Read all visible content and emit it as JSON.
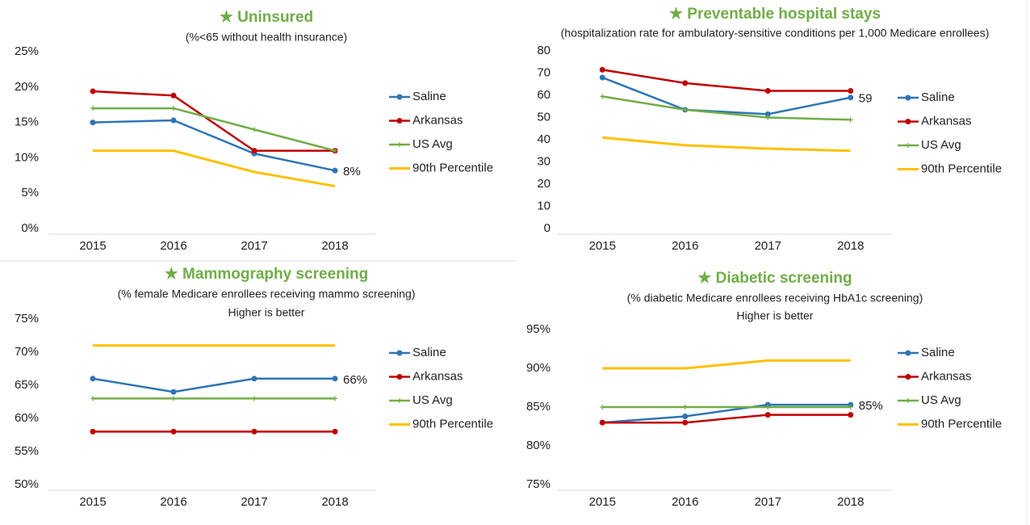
{
  "chart_data": [
    {
      "type": "line",
      "title": "★ Uninsured",
      "subtitle": "(%<65 without health insurance)",
      "categories": [
        "2015",
        "2016",
        "2017",
        "2018"
      ],
      "ylim": [
        0,
        25
      ],
      "yticks": [
        {
          "value": 0,
          "label": "0%"
        },
        {
          "value": 5,
          "label": "5%"
        },
        {
          "value": 10,
          "label": "10%"
        },
        {
          "value": 15,
          "label": "15%"
        },
        {
          "value": 20,
          "label": "20%"
        },
        {
          "value": 25,
          "label": "25%"
        }
      ],
      "series": [
        {
          "name": "Saline",
          "color": "#2e75b6",
          "marker": "circle",
          "values": [
            15,
            15.3,
            10.6,
            8.2
          ],
          "value_labels": [
            null,
            null,
            null,
            "8%"
          ]
        },
        {
          "name": "Arkansas",
          "color": "#c00000",
          "marker": "circle",
          "values": [
            19.4,
            18.8,
            11,
            11
          ]
        },
        {
          "name": "US Avg",
          "color": "#70ad47",
          "marker": "plus",
          "values": [
            17,
            17,
            14,
            11
          ]
        },
        {
          "name": "90th Percentile",
          "color": "#ffc000",
          "marker": "none",
          "values": [
            11,
            11,
            8,
            6
          ]
        }
      ]
    },
    {
      "type": "line",
      "title": "★ Preventable hospital stays",
      "subtitle": "(hospitalization rate for ambulatory-sensitive conditions per 1,000 Medicare enrollees)",
      "categories": [
        "2015",
        "2016",
        "2017",
        "2018"
      ],
      "ylim": [
        0,
        80
      ],
      "yticks": [
        0,
        10,
        20,
        30,
        40,
        50,
        60,
        70,
        80
      ],
      "series": [
        {
          "name": "Saline",
          "color": "#2e75b6",
          "marker": "circle",
          "values": [
            68,
            53.5,
            51.5,
            59
          ],
          "value_labels": [
            null,
            null,
            null,
            "59"
          ]
        },
        {
          "name": "Arkansas",
          "color": "#c00000",
          "marker": "circle",
          "values": [
            71.5,
            65.5,
            62,
            62
          ]
        },
        {
          "name": "US Avg",
          "color": "#70ad47",
          "marker": "plus",
          "values": [
            59.5,
            53.5,
            50,
            49
          ]
        },
        {
          "name": "90th Percentile",
          "color": "#ffc000",
          "marker": "none",
          "values": [
            41,
            37.5,
            36,
            35
          ]
        }
      ]
    },
    {
      "type": "line",
      "title": "★ Mammography screening",
      "subtitle": "(% female Medicare enrollees receiving mammo screening)",
      "note": "Higher is better",
      "categories": [
        "2015",
        "2016",
        "2017",
        "2018"
      ],
      "ylim": [
        50,
        75
      ],
      "yticks": [
        {
          "value": 50,
          "label": "50%"
        },
        {
          "value": 55,
          "label": "55%"
        },
        {
          "value": 60,
          "label": "60%"
        },
        {
          "value": 65,
          "label": "65%"
        },
        {
          "value": 70,
          "label": "70%"
        },
        {
          "value": 75,
          "label": "75%"
        }
      ],
      "series": [
        {
          "name": "Saline",
          "color": "#2e75b6",
          "marker": "circle",
          "values": [
            66,
            64,
            66,
            66
          ],
          "value_labels": [
            null,
            null,
            null,
            "66%"
          ]
        },
        {
          "name": "Arkansas",
          "color": "#c00000",
          "marker": "circle",
          "values": [
            58,
            58,
            58,
            58
          ]
        },
        {
          "name": "US Avg",
          "color": "#70ad47",
          "marker": "plus",
          "values": [
            63,
            63,
            63,
            63
          ]
        },
        {
          "name": "90th Percentile",
          "color": "#ffc000",
          "marker": "none",
          "values": [
            71,
            71,
            71,
            71
          ]
        }
      ]
    },
    {
      "type": "line",
      "title": "★ Diabetic screening",
      "subtitle": "(% diabetic Medicare enrollees receiving HbA1c screening)",
      "note": "Higher is better",
      "categories": [
        "2015",
        "2016",
        "2017",
        "2018"
      ],
      "ylim": [
        75,
        95
      ],
      "yticks": [
        {
          "value": 75,
          "label": "75%"
        },
        {
          "value": 80,
          "label": "80%"
        },
        {
          "value": 85,
          "label": "85%"
        },
        {
          "value": 90,
          "label": "90%"
        },
        {
          "value": 95,
          "label": "95%"
        }
      ],
      "series": [
        {
          "name": "Saline",
          "color": "#2e75b6",
          "marker": "circle",
          "values": [
            83,
            83.8,
            85.3,
            85.3
          ],
          "value_labels": [
            null,
            null,
            null,
            "85%"
          ]
        },
        {
          "name": "Arkansas",
          "color": "#c00000",
          "marker": "circle",
          "values": [
            83,
            83,
            84,
            84
          ]
        },
        {
          "name": "US Avg",
          "color": "#70ad47",
          "marker": "plus",
          "values": [
            85,
            85,
            85,
            85
          ]
        },
        {
          "name": "90th Percentile",
          "color": "#ffc000",
          "marker": "none",
          "values": [
            90,
            90,
            91,
            91
          ]
        }
      ]
    }
  ]
}
